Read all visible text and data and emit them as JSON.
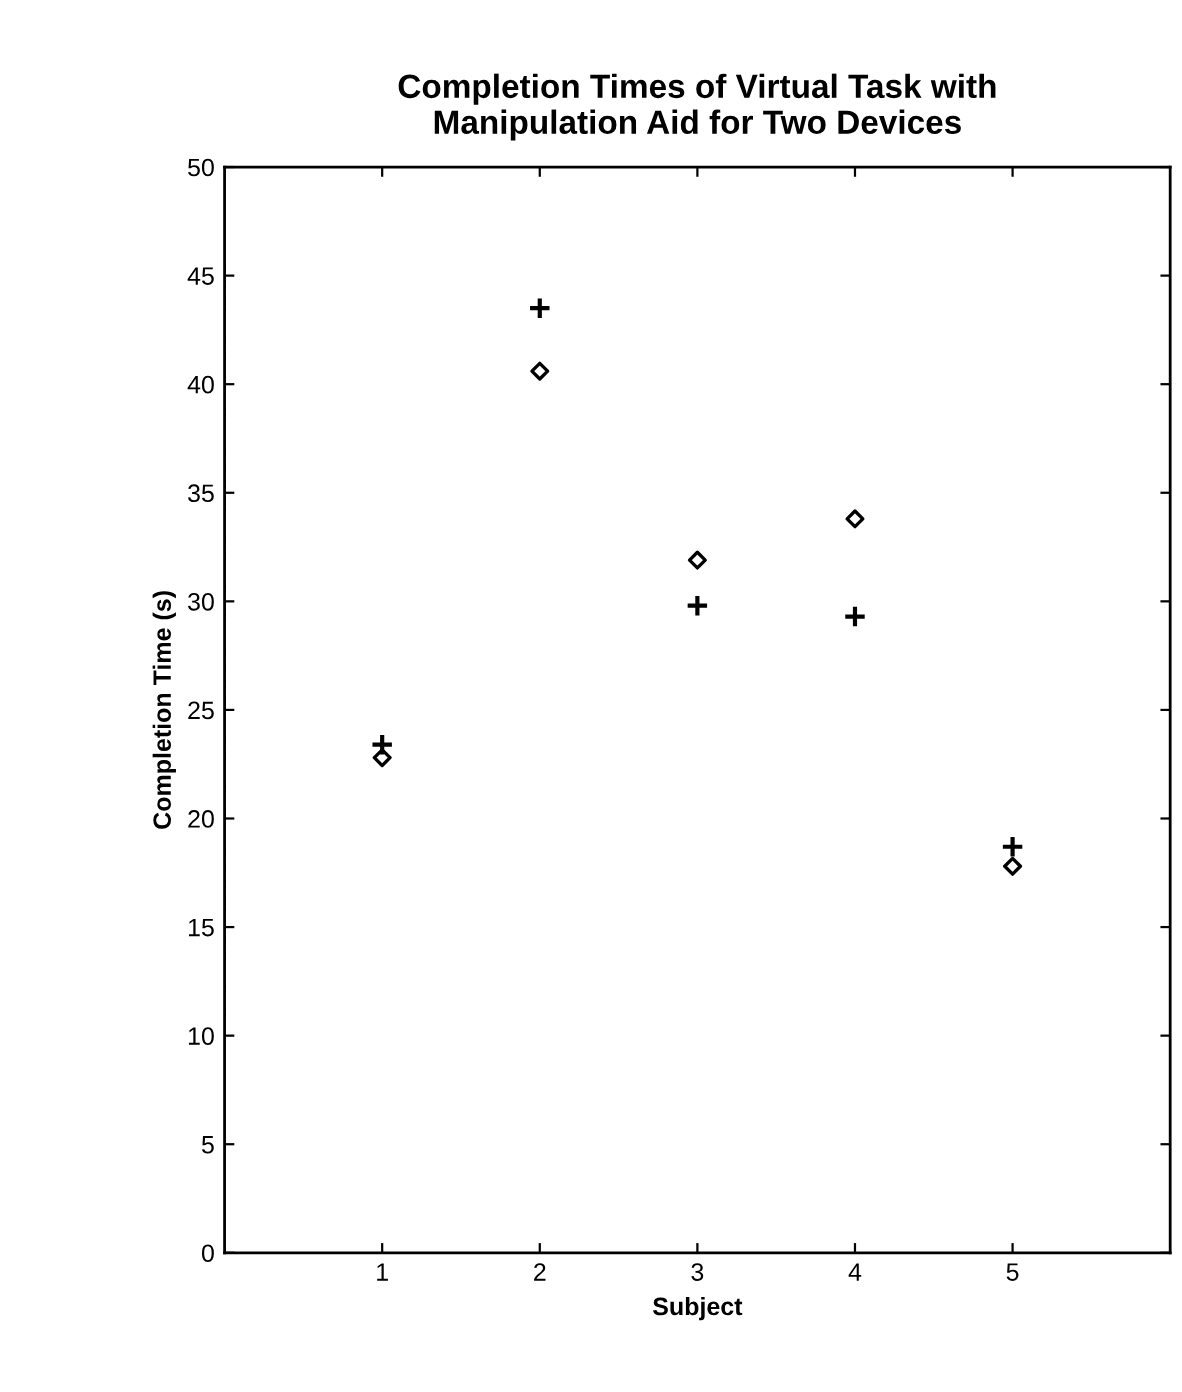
{
  "chart_data": {
    "type": "scatter",
    "title": "Completion Times of Virtual Task with\nManipulation Aid for Two Devices",
    "xlabel": "Subject",
    "ylabel": "Completion Time (s)",
    "x": [
      1,
      2,
      3,
      4,
      5
    ],
    "series": [
      {
        "color": "#000000",
        "marker": "diamond",
        "values": [
          22.8,
          40.6,
          31.9,
          33.8,
          17.8
        ]
      },
      {
        "color": "#000000",
        "marker": "cross",
        "values": [
          23.4,
          43.5,
          29.8,
          29.3,
          18.7
        ]
      }
    ],
    "xlim": [
      0,
      6
    ],
    "xticks": [
      1,
      2,
      3,
      4,
      5
    ],
    "ylim": [
      0,
      50
    ],
    "yticks": [
      0,
      5,
      10,
      15,
      20,
      25,
      30,
      35,
      40,
      45,
      50
    ],
    "grid": false,
    "legend": false
  }
}
